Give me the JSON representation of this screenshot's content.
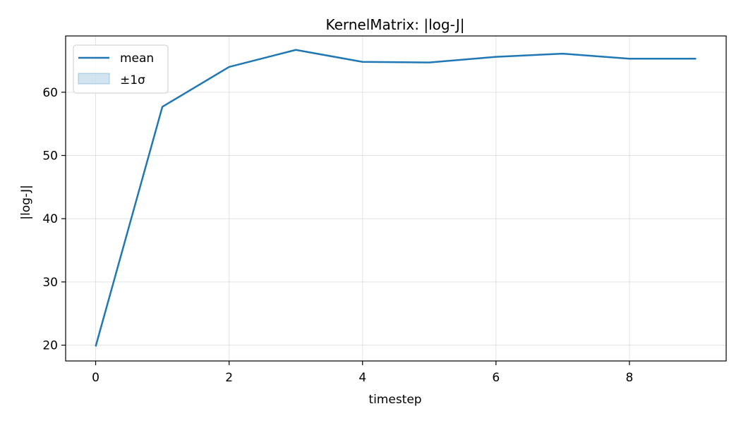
{
  "chart_data": {
    "type": "line",
    "title": "KernelMatrix: |log-J|",
    "xlabel": "timestep",
    "ylabel": "|log-J|",
    "x": [
      0,
      1,
      2,
      3,
      4,
      5,
      6,
      7,
      8,
      9
    ],
    "series": [
      {
        "name": "mean",
        "values": [
          19.8,
          57.7,
          64.0,
          66.7,
          64.8,
          64.7,
          65.6,
          66.1,
          65.3,
          65.3
        ],
        "color": "#1f77b4"
      }
    ],
    "band": {
      "name": "±1σ",
      "color": "#1f77b4",
      "opacity": 0.2
    },
    "xlim": [
      -0.45,
      9.45
    ],
    "ylim": [
      17.5,
      68.9
    ],
    "xticks": [
      0,
      2,
      4,
      6,
      8
    ],
    "yticks": [
      20,
      30,
      40,
      50,
      60
    ],
    "grid": true,
    "legend_position": "top-left"
  }
}
